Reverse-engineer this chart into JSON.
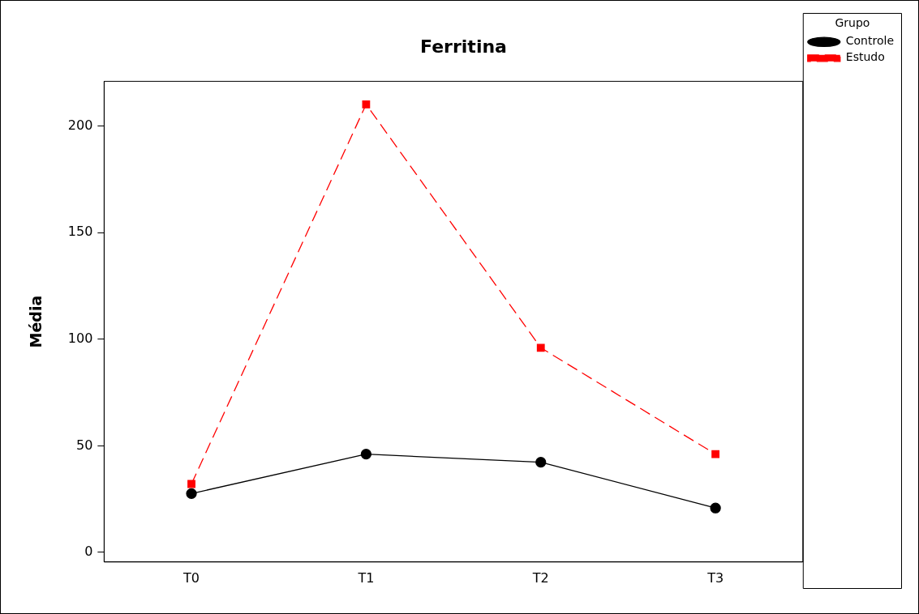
{
  "chart_data": {
    "type": "line",
    "title": "Ferritina",
    "ylabel": "Média",
    "legend_title": "Grupo",
    "categories": [
      "T0",
      "T1",
      "T2",
      "T3"
    ],
    "series": [
      {
        "name": "Controle",
        "color": "#000000",
        "values": [
          27.6,
          46.1,
          42.3,
          20.8
        ],
        "marker": "circle",
        "line_style": "solid"
      },
      {
        "name": "Estudo",
        "color": "#ff0000",
        "values": [
          32.1,
          210.2,
          96.0,
          46.1
        ],
        "marker": "square",
        "line_style": "dashed"
      }
    ],
    "ylim": [
      -4.5,
      221
    ],
    "yticks": [
      0,
      50,
      100,
      150,
      200
    ],
    "grid": false,
    "legend": "top right"
  }
}
